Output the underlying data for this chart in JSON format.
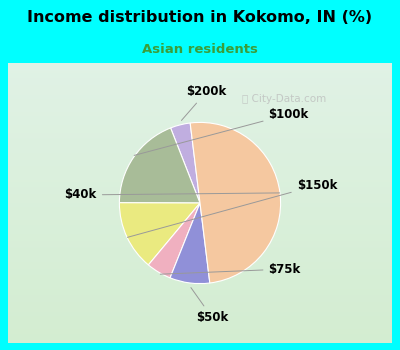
{
  "title": "Income distribution in Kokomo, IN (%)",
  "subtitle": "Asian residents",
  "title_color": "#000000",
  "subtitle_color": "#3a9e3a",
  "background_outer": "#00ffff",
  "background_inner": "#d8ede0",
  "labels": [
    "$200k",
    "$100k",
    "$150k",
    "$75k",
    "$50k",
    "$40k"
  ],
  "values": [
    4,
    19,
    14,
    5,
    8,
    50
  ],
  "colors": [
    "#c0aee0",
    "#a8bc98",
    "#eaea80",
    "#f0b0c0",
    "#9090d8",
    "#f5c8a0"
  ],
  "startangle": 97,
  "label_fontsize": 8.5,
  "label_color": "#000000",
  "watermark": "City-Data.com",
  "watermark_color": "#bbbbbb"
}
